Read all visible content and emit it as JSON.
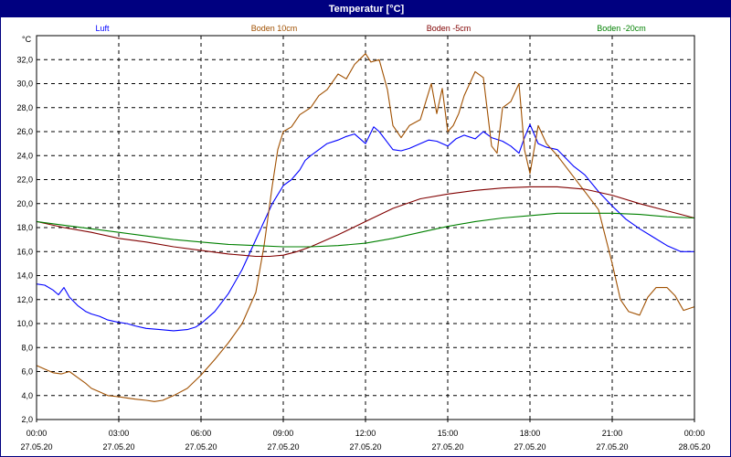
{
  "window": {
    "title": "Temperatur [°C]"
  },
  "chart_data": {
    "type": "line",
    "title": "Temperatur [°C]",
    "ylabel": "°C",
    "xlabel": "",
    "ylim": [
      2.0,
      34.0
    ],
    "xlim_hours": [
      0,
      24
    ],
    "y_ticks": [
      "2,0",
      "4,0",
      "6,0",
      "8,0",
      "10,0",
      "12,0",
      "14,0",
      "16,0",
      "18,0",
      "20,0",
      "22,0",
      "24,0",
      "26,0",
      "28,0",
      "30,0",
      "32,0"
    ],
    "x_ticks": [
      {
        "time": "00:00",
        "date": "27.05.20"
      },
      {
        "time": "03:00",
        "date": "27.05.20"
      },
      {
        "time": "06:00",
        "date": "27.05.20"
      },
      {
        "time": "09:00",
        "date": "27.05.20"
      },
      {
        "time": "12:00",
        "date": "27.05.20"
      },
      {
        "time": "15:00",
        "date": "27.05.20"
      },
      {
        "time": "18:00",
        "date": "27.05.20"
      },
      {
        "time": "21:00",
        "date": "27.05.20"
      },
      {
        "time": "00:00",
        "date": "28.05.20"
      }
    ],
    "grid": true,
    "legend_placement": "top",
    "series": [
      {
        "name": "Luft",
        "color": "#0000ff",
        "x": [
          0,
          0.3,
          0.6,
          0.8,
          1,
          1.2,
          1.5,
          1.8,
          2,
          2.3,
          2.6,
          3,
          3.3,
          3.6,
          4,
          4.5,
          5,
          5.5,
          5.8,
          6,
          6.2,
          6.5,
          7,
          7.5,
          8,
          8.3,
          8.6,
          9,
          9.3,
          9.6,
          9.8,
          10,
          10.3,
          10.6,
          11,
          11.3,
          11.6,
          12,
          12.3,
          12.5,
          12.8,
          13,
          13.3,
          13.6,
          14,
          14.3,
          14.6,
          15,
          15.3,
          15.6,
          16,
          16.3,
          16.6,
          17,
          17.3,
          17.6,
          17.8,
          18,
          18.3,
          18.6,
          19,
          19.3,
          19.6,
          20,
          20.5,
          21,
          21.5,
          22,
          22.5,
          23,
          23.5,
          24
        ],
        "values": [
          13.3,
          13.2,
          12.8,
          12.4,
          13.0,
          12.2,
          11.5,
          11.0,
          10.8,
          10.6,
          10.3,
          10.1,
          10.0,
          9.8,
          9.6,
          9.5,
          9.4,
          9.5,
          9.7,
          10.0,
          10.4,
          11.0,
          12.5,
          14.5,
          17.0,
          18.5,
          20.0,
          21.5,
          22.0,
          22.8,
          23.6,
          24.0,
          24.5,
          25.0,
          25.3,
          25.6,
          25.8,
          25.0,
          26.4,
          26.0,
          25.1,
          24.5,
          24.4,
          24.6,
          25.0,
          25.3,
          25.2,
          24.8,
          25.4,
          25.7,
          25.4,
          26.0,
          25.5,
          25.2,
          24.8,
          24.2,
          25.5,
          26.6,
          25.0,
          24.7,
          24.5,
          23.8,
          23.1,
          22.4,
          21.0,
          19.8,
          18.7,
          17.9,
          17.2,
          16.5,
          16.0,
          16.0
        ]
      },
      {
        "name": "Boden 10cm",
        "color": "#a05000",
        "x": [
          0,
          0.3,
          0.6,
          0.9,
          1.2,
          1.5,
          1.8,
          2,
          2.3,
          2.6,
          3,
          3.3,
          3.6,
          4,
          4.3,
          4.6,
          5,
          5.5,
          6,
          6.5,
          7,
          7.5,
          8,
          8.3,
          8.6,
          8.8,
          9,
          9.3,
          9.6,
          10,
          10.3,
          10.6,
          11,
          11.3,
          11.6,
          12,
          12.2,
          12.5,
          12.8,
          13,
          13.3,
          13.6,
          14,
          14.2,
          14.4,
          14.6,
          14.8,
          15,
          15.2,
          15.4,
          15.6,
          16,
          16.3,
          16.6,
          16.8,
          17,
          17.3,
          17.6,
          17.8,
          18,
          18.3,
          18.6,
          19,
          19.5,
          20,
          20.5,
          21,
          21.3,
          21.6,
          22,
          22.3,
          22.6,
          23,
          23.3,
          23.6,
          24
        ],
        "values": [
          6.5,
          6.2,
          5.9,
          5.8,
          6.0,
          5.5,
          5.0,
          4.6,
          4.3,
          4.0,
          3.9,
          3.8,
          3.7,
          3.6,
          3.5,
          3.6,
          4.0,
          4.6,
          5.7,
          7.0,
          8.4,
          10.0,
          12.6,
          16.5,
          21.5,
          24.5,
          26.0,
          26.4,
          27.4,
          28.0,
          29.0,
          29.5,
          30.8,
          30.4,
          31.6,
          32.5,
          31.8,
          32.0,
          29.5,
          26.5,
          25.5,
          26.5,
          27.0,
          28.5,
          30.0,
          27.5,
          29.6,
          26.0,
          26.5,
          27.5,
          29.0,
          31.0,
          30.5,
          24.8,
          24.2,
          28.0,
          28.5,
          30.0,
          24.5,
          22.5,
          26.5,
          25.0,
          24.0,
          22.5,
          21.0,
          19.5,
          15.0,
          12.0,
          11.0,
          10.7,
          12.2,
          13.0,
          13.0,
          12.3,
          11.1,
          11.4
        ]
      },
      {
        "name": "Boden -5cm",
        "color": "#800000",
        "x": [
          0,
          1,
          2,
          3,
          4,
          5,
          6,
          7,
          7.5,
          8,
          8.5,
          9,
          9.5,
          10,
          11,
          12,
          13,
          14,
          15,
          16,
          17,
          18,
          19,
          20,
          21,
          22,
          23,
          24
        ],
        "values": [
          18.5,
          18.0,
          17.6,
          17.1,
          16.8,
          16.4,
          16.1,
          15.8,
          15.7,
          15.6,
          15.6,
          15.7,
          16.0,
          16.4,
          17.4,
          18.5,
          19.6,
          20.4,
          20.8,
          21.1,
          21.3,
          21.4,
          21.4,
          21.2,
          20.7,
          20.0,
          19.4,
          18.8
        ]
      },
      {
        "name": "Boden -20cm",
        "color": "#008000",
        "x": [
          0,
          1,
          2,
          3,
          4,
          5,
          6,
          7,
          8,
          9,
          10,
          11,
          12,
          13,
          14,
          15,
          16,
          17,
          18,
          19,
          20,
          21,
          22,
          23,
          24
        ],
        "values": [
          18.5,
          18.2,
          17.9,
          17.6,
          17.3,
          17.0,
          16.8,
          16.6,
          16.5,
          16.4,
          16.4,
          16.5,
          16.7,
          17.1,
          17.6,
          18.1,
          18.5,
          18.8,
          19.0,
          19.2,
          19.2,
          19.2,
          19.1,
          18.9,
          18.8
        ]
      }
    ]
  }
}
